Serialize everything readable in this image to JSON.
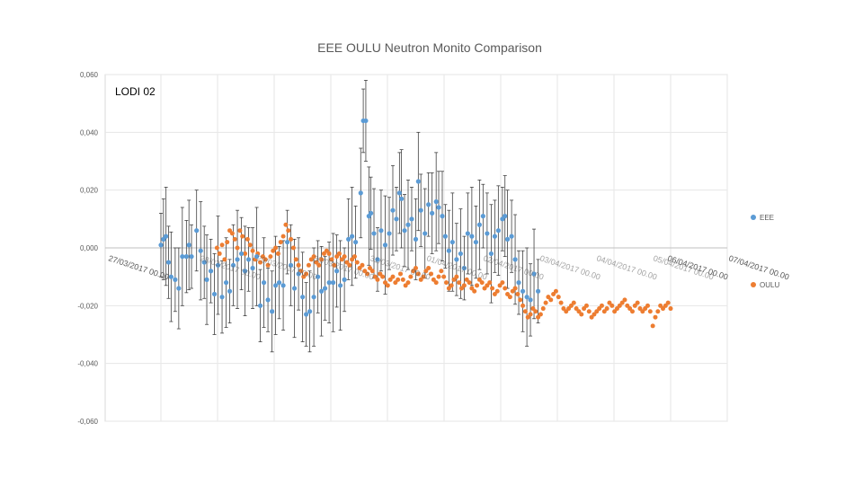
{
  "chart_data": {
    "type": "scatter",
    "title": "EEE OULU Neutron Monito Comparison",
    "annotation": "LODI 02",
    "ylim": [
      -0.06,
      0.06
    ],
    "yticks": [
      0.06,
      0.04,
      0.02,
      0.0,
      -0.02,
      -0.04,
      -0.06
    ],
    "ytick_labels": [
      "0,060",
      "0,040",
      "0,020",
      "0,000",
      "-0,020",
      "-0,040",
      "-0,060"
    ],
    "xlim": [
      0,
      10
    ],
    "xtick_labels": [
      "27/03/2017 00.00",
      "28/03/2017 00.00",
      "29/03/2017 00.00",
      "30/03/2017 00.00",
      "31/03/2017 00.00",
      "01/04/2017 00.00",
      "02/04/2017 00.00",
      "03/04/2017 00.00",
      "04/04/2017 00.00",
      "05/04/2017 00.00",
      "06/04/2017 00.00",
      "07/04/2017 00.00"
    ],
    "xtick_labels_visible": [
      "27/03/2017 00.0",
      "06/04/2017 00.00",
      "07/04/2017 00.00"
    ],
    "grid": true,
    "legend_position": "right",
    "series": [
      {
        "name": "EEE",
        "color": "#5b9bd5",
        "error_bars": true,
        "points": [
          [
            0.0,
            0.001
          ],
          [
            0.05,
            0.003
          ],
          [
            0.1,
            0.004
          ],
          [
            0.15,
            -0.005
          ],
          [
            0.2,
            -0.01
          ],
          [
            0.28,
            -0.011
          ],
          [
            0.35,
            -0.014
          ],
          [
            0.42,
            -0.003
          ],
          [
            0.5,
            -0.003
          ],
          [
            0.55,
            0.001
          ],
          [
            0.6,
            -0.003
          ],
          [
            0.7,
            0.006
          ],
          [
            0.78,
            -0.001
          ],
          [
            0.85,
            -0.005
          ],
          [
            0.9,
            -0.011
          ],
          [
            0.98,
            -0.008
          ],
          [
            1.05,
            -0.016
          ],
          [
            1.12,
            -0.006
          ],
          [
            1.2,
            -0.017
          ],
          [
            1.28,
            -0.012
          ],
          [
            1.35,
            -0.015
          ],
          [
            1.42,
            -0.006
          ],
          [
            1.5,
            -0.004
          ],
          [
            1.58,
            -0.002
          ],
          [
            1.65,
            -0.008
          ],
          [
            1.72,
            -0.004
          ],
          [
            1.8,
            -0.007
          ],
          [
            1.88,
            -0.003
          ],
          [
            1.95,
            -0.02
          ],
          [
            2.02,
            -0.012
          ],
          [
            2.1,
            -0.018
          ],
          [
            2.18,
            -0.022
          ],
          [
            2.25,
            -0.013
          ],
          [
            2.32,
            -0.012
          ],
          [
            2.4,
            -0.013
          ],
          [
            2.48,
            0.002
          ],
          [
            2.55,
            -0.006
          ],
          [
            2.62,
            -0.014
          ],
          [
            2.7,
            -0.009
          ],
          [
            2.78,
            -0.017
          ],
          [
            2.85,
            -0.023
          ],
          [
            2.92,
            -0.022
          ],
          [
            3.0,
            -0.017
          ],
          [
            3.08,
            -0.01
          ],
          [
            3.15,
            -0.015
          ],
          [
            3.22,
            -0.014
          ],
          [
            3.3,
            -0.012
          ],
          [
            3.38,
            -0.012
          ],
          [
            3.45,
            -0.008
          ],
          [
            3.52,
            -0.013
          ],
          [
            3.6,
            -0.011
          ],
          [
            3.68,
            0.003
          ],
          [
            3.75,
            0.004
          ],
          [
            3.82,
            0.002
          ],
          [
            3.92,
            0.019
          ],
          [
            3.97,
            0.044
          ],
          [
            4.02,
            0.044
          ],
          [
            4.08,
            0.011
          ],
          [
            4.12,
            0.012
          ],
          [
            4.18,
            0.005
          ],
          [
            4.25,
            -0.004
          ],
          [
            4.32,
            0.006
          ],
          [
            4.4,
            0.001
          ],
          [
            4.48,
            0.005
          ],
          [
            4.55,
            0.013
          ],
          [
            4.62,
            0.01
          ],
          [
            4.68,
            0.019
          ],
          [
            4.72,
            0.017
          ],
          [
            4.78,
            0.006
          ],
          [
            4.85,
            0.008
          ],
          [
            4.92,
            0.01
          ],
          [
            5.0,
            0.003
          ],
          [
            5.05,
            0.023
          ],
          [
            5.1,
            0.013
          ],
          [
            5.18,
            0.005
          ],
          [
            5.25,
            0.015
          ],
          [
            5.32,
            0.012
          ],
          [
            5.4,
            0.016
          ],
          [
            5.45,
            0.014
          ],
          [
            5.52,
            0.011
          ],
          [
            5.58,
            0.004
          ],
          [
            5.65,
            -0.001
          ],
          [
            5.72,
            0.002
          ],
          [
            5.8,
            -0.004
          ],
          [
            5.88,
            -0.002
          ],
          [
            5.95,
            -0.007
          ],
          [
            6.02,
            0.005
          ],
          [
            6.1,
            0.004
          ],
          [
            6.18,
            0.002
          ],
          [
            6.25,
            0.008
          ],
          [
            6.32,
            0.011
          ],
          [
            6.4,
            0.005
          ],
          [
            6.48,
            -0.002
          ],
          [
            6.55,
            0.004
          ],
          [
            6.62,
            0.006
          ],
          [
            6.7,
            0.01
          ],
          [
            6.75,
            0.011
          ],
          [
            6.8,
            0.003
          ],
          [
            6.88,
            0.004
          ],
          [
            6.95,
            -0.004
          ],
          [
            7.02,
            -0.012
          ],
          [
            7.1,
            -0.015
          ],
          [
            7.18,
            -0.017
          ],
          [
            7.25,
            -0.018
          ],
          [
            7.32,
            -0.009
          ],
          [
            7.4,
            -0.015
          ]
        ]
      },
      {
        "name": "OULU",
        "color": "#ed7d31",
        "error_bars": false,
        "points": [
          [
            1.1,
            0.0
          ],
          [
            1.15,
            -0.002
          ],
          [
            1.2,
            0.001
          ],
          [
            1.25,
            -0.004
          ],
          [
            1.3,
            0.002
          ],
          [
            1.35,
            0.006
          ],
          [
            1.4,
            0.005
          ],
          [
            1.45,
            0.003
          ],
          [
            1.5,
            0.0
          ],
          [
            1.55,
            0.006
          ],
          [
            1.6,
            0.004
          ],
          [
            1.65,
            -0.002
          ],
          [
            1.7,
            0.003
          ],
          [
            1.75,
            0.001
          ],
          [
            1.8,
            -0.001
          ],
          [
            1.85,
            -0.004
          ],
          [
            1.9,
            -0.002
          ],
          [
            1.95,
            -0.005
          ],
          [
            2.0,
            -0.003
          ],
          [
            2.05,
            -0.004
          ],
          [
            2.1,
            -0.006
          ],
          [
            2.15,
            -0.003
          ],
          [
            2.2,
            -0.001
          ],
          [
            2.25,
            0.0
          ],
          [
            2.3,
            -0.002
          ],
          [
            2.35,
            0.002
          ],
          [
            2.4,
            0.004
          ],
          [
            2.45,
            0.008
          ],
          [
            2.5,
            0.006
          ],
          [
            2.55,
            0.003
          ],
          [
            2.6,
            0.0
          ],
          [
            2.65,
            -0.004
          ],
          [
            2.7,
            -0.006
          ],
          [
            2.75,
            -0.008
          ],
          [
            2.8,
            -0.01
          ],
          [
            2.85,
            -0.009
          ],
          [
            2.9,
            -0.006
          ],
          [
            2.95,
            -0.004
          ],
          [
            3.0,
            -0.003
          ],
          [
            3.05,
            -0.005
          ],
          [
            3.1,
            -0.006
          ],
          [
            3.15,
            -0.004
          ],
          [
            3.2,
            -0.002
          ],
          [
            3.25,
            -0.001
          ],
          [
            3.3,
            -0.002
          ],
          [
            3.35,
            -0.004
          ],
          [
            3.4,
            -0.006
          ],
          [
            3.45,
            -0.003
          ],
          [
            3.5,
            -0.002
          ],
          [
            3.55,
            -0.004
          ],
          [
            3.6,
            -0.003
          ],
          [
            3.65,
            -0.005
          ],
          [
            3.7,
            -0.006
          ],
          [
            3.75,
            -0.004
          ],
          [
            3.8,
            -0.003
          ],
          [
            3.85,
            -0.005
          ],
          [
            3.9,
            -0.007
          ],
          [
            3.95,
            -0.006
          ],
          [
            4.0,
            -0.008
          ],
          [
            4.05,
            -0.009
          ],
          [
            4.1,
            -0.007
          ],
          [
            4.15,
            -0.008
          ],
          [
            4.2,
            -0.01
          ],
          [
            4.25,
            -0.011
          ],
          [
            4.3,
            -0.009
          ],
          [
            4.35,
            -0.01
          ],
          [
            4.4,
            -0.012
          ],
          [
            4.45,
            -0.013
          ],
          [
            4.5,
            -0.011
          ],
          [
            4.55,
            -0.01
          ],
          [
            4.6,
            -0.012
          ],
          [
            4.65,
            -0.011
          ],
          [
            4.7,
            -0.009
          ],
          [
            4.75,
            -0.011
          ],
          [
            4.8,
            -0.013
          ],
          [
            4.85,
            -0.012
          ],
          [
            4.9,
            -0.01
          ],
          [
            4.95,
            -0.008
          ],
          [
            5.0,
            -0.007
          ],
          [
            5.05,
            -0.009
          ],
          [
            5.1,
            -0.011
          ],
          [
            5.15,
            -0.01
          ],
          [
            5.2,
            -0.008
          ],
          [
            5.25,
            -0.007
          ],
          [
            5.3,
            -0.009
          ],
          [
            5.35,
            -0.011
          ],
          [
            5.4,
            -0.012
          ],
          [
            5.45,
            -0.01
          ],
          [
            5.5,
            -0.008
          ],
          [
            5.55,
            -0.01
          ],
          [
            5.6,
            -0.012
          ],
          [
            5.65,
            -0.014
          ],
          [
            5.7,
            -0.013
          ],
          [
            5.75,
            -0.011
          ],
          [
            5.8,
            -0.01
          ],
          [
            5.85,
            -0.012
          ],
          [
            5.9,
            -0.014
          ],
          [
            5.95,
            -0.013
          ],
          [
            6.0,
            -0.011
          ],
          [
            6.05,
            -0.012
          ],
          [
            6.1,
            -0.014
          ],
          [
            6.15,
            -0.015
          ],
          [
            6.2,
            -0.013
          ],
          [
            6.25,
            -0.011
          ],
          [
            6.3,
            -0.012
          ],
          [
            6.35,
            -0.014
          ],
          [
            6.4,
            -0.013
          ],
          [
            6.45,
            -0.012
          ],
          [
            6.5,
            -0.014
          ],
          [
            6.55,
            -0.016
          ],
          [
            6.6,
            -0.015
          ],
          [
            6.65,
            -0.013
          ],
          [
            6.7,
            -0.012
          ],
          [
            6.75,
            -0.014
          ],
          [
            6.8,
            -0.016
          ],
          [
            6.85,
            -0.017
          ],
          [
            6.9,
            -0.015
          ],
          [
            6.95,
            -0.014
          ],
          [
            7.0,
            -0.016
          ],
          [
            7.05,
            -0.018
          ],
          [
            7.1,
            -0.02
          ],
          [
            7.15,
            -0.022
          ],
          [
            7.2,
            -0.024
          ],
          [
            7.25,
            -0.023
          ],
          [
            7.3,
            -0.021
          ],
          [
            7.35,
            -0.022
          ],
          [
            7.4,
            -0.024
          ],
          [
            7.45,
            -0.023
          ],
          [
            7.5,
            -0.021
          ],
          [
            7.55,
            -0.019
          ],
          [
            7.6,
            -0.017
          ],
          [
            7.65,
            -0.018
          ],
          [
            7.7,
            -0.016
          ],
          [
            7.75,
            -0.015
          ],
          [
            7.8,
            -0.017
          ],
          [
            7.85,
            -0.019
          ],
          [
            7.9,
            -0.021
          ],
          [
            7.95,
            -0.022
          ],
          [
            8.0,
            -0.021
          ],
          [
            8.05,
            -0.02
          ],
          [
            8.1,
            -0.019
          ],
          [
            8.15,
            -0.021
          ],
          [
            8.2,
            -0.022
          ],
          [
            8.25,
            -0.023
          ],
          [
            8.3,
            -0.021
          ],
          [
            8.35,
            -0.02
          ],
          [
            8.4,
            -0.022
          ],
          [
            8.45,
            -0.024
          ],
          [
            8.5,
            -0.023
          ],
          [
            8.55,
            -0.022
          ],
          [
            8.6,
            -0.021
          ],
          [
            8.65,
            -0.02
          ],
          [
            8.7,
            -0.022
          ],
          [
            8.75,
            -0.021
          ],
          [
            8.8,
            -0.019
          ],
          [
            8.85,
            -0.02
          ],
          [
            8.9,
            -0.022
          ],
          [
            8.95,
            -0.021
          ],
          [
            9.0,
            -0.02
          ],
          [
            9.05,
            -0.019
          ],
          [
            9.1,
            -0.018
          ],
          [
            9.15,
            -0.02
          ],
          [
            9.2,
            -0.021
          ],
          [
            9.25,
            -0.022
          ],
          [
            9.3,
            -0.02
          ],
          [
            9.35,
            -0.019
          ],
          [
            9.4,
            -0.021
          ],
          [
            9.45,
            -0.022
          ],
          [
            9.5,
            -0.021
          ],
          [
            9.55,
            -0.02
          ],
          [
            9.6,
            -0.022
          ],
          [
            9.65,
            -0.027
          ],
          [
            9.7,
            -0.024
          ],
          [
            9.75,
            -0.022
          ],
          [
            9.8,
            -0.02
          ],
          [
            9.85,
            -0.021
          ],
          [
            9.9,
            -0.02
          ],
          [
            9.95,
            -0.019
          ],
          [
            10.0,
            -0.021
          ]
        ]
      }
    ]
  }
}
